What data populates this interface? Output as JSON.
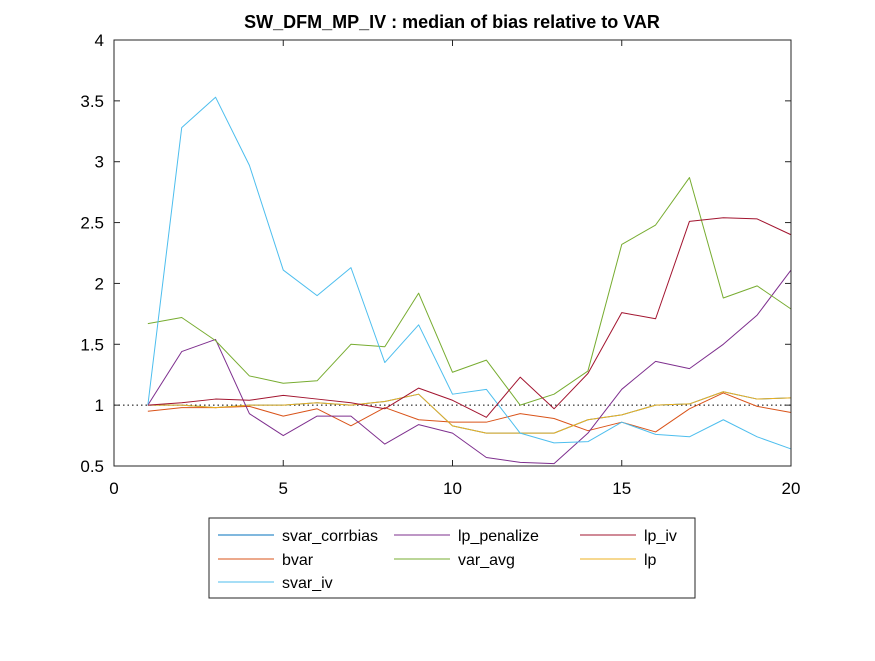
{
  "chart_data": {
    "type": "line",
    "title": "SW_DFM_MP_IV : median of bias relative to VAR",
    "xlabel": "",
    "ylabel": "",
    "xlim": [
      0,
      20
    ],
    "ylim": [
      0.5,
      4
    ],
    "x_ticks": [
      "0",
      "5",
      "10",
      "15",
      "20"
    ],
    "y_ticks": [
      "0.5",
      "1",
      "1.5",
      "2",
      "2.5",
      "3",
      "3.5",
      "4"
    ],
    "grid": false,
    "legend_placement": "bottom-center",
    "legend_columns": 3,
    "reference_line": {
      "y": 1,
      "style": "dotted"
    },
    "x": [
      1,
      2,
      3,
      4,
      5,
      6,
      7,
      8,
      9,
      10,
      11,
      12,
      13,
      14,
      15,
      16,
      17,
      18,
      19,
      20
    ],
    "series": [
      {
        "name": "svar_corrbias",
        "color": "#0072BD",
        "values": [
          1.0,
          1.0,
          0.98,
          1.0,
          1.0,
          1.02,
          1.0,
          1.03,
          1.09,
          0.83,
          0.77,
          0.77,
          0.77,
          0.88,
          0.92,
          1.0,
          1.01,
          1.11,
          1.05,
          1.06
        ]
      },
      {
        "name": "bvar",
        "color": "#D95319",
        "values": [
          0.95,
          0.98,
          0.98,
          0.99,
          0.91,
          0.97,
          0.83,
          0.98,
          0.88,
          0.86,
          0.86,
          0.93,
          0.89,
          0.79,
          0.86,
          0.78,
          0.97,
          1.1,
          0.99,
          0.94
        ]
      },
      {
        "name": "lp",
        "color": "#EDB120",
        "values": [
          1.0,
          1.0,
          0.98,
          1.0,
          1.0,
          1.02,
          1.0,
          1.03,
          1.09,
          0.83,
          0.77,
          0.77,
          0.77,
          0.88,
          0.92,
          1.0,
          1.01,
          1.11,
          1.05,
          1.06
        ]
      },
      {
        "name": "lp_penalize",
        "color": "#7E2F8E",
        "values": [
          1.0,
          1.44,
          1.54,
          0.93,
          0.75,
          0.91,
          0.91,
          0.68,
          0.84,
          0.77,
          0.57,
          0.53,
          0.52,
          0.77,
          1.13,
          1.36,
          1.3,
          1.5,
          1.74,
          2.11
        ]
      },
      {
        "name": "var_avg",
        "color": "#77AC30",
        "values": [
          1.67,
          1.72,
          1.53,
          1.24,
          1.18,
          1.2,
          1.5,
          1.48,
          1.92,
          1.27,
          1.37,
          1.0,
          1.09,
          1.28,
          2.32,
          2.48,
          2.87,
          1.88,
          1.98,
          1.79
        ]
      },
      {
        "name": "svar_iv",
        "color": "#4DBEEE",
        "values": [
          1.0,
          3.28,
          3.53,
          2.97,
          2.11,
          1.9,
          2.13,
          1.35,
          1.66,
          1.09,
          1.13,
          0.77,
          0.69,
          0.7,
          0.86,
          0.76,
          0.74,
          0.88,
          0.74,
          0.64
        ]
      },
      {
        "name": "lp_iv",
        "color": "#A2142F",
        "values": [
          1.0,
          1.02,
          1.05,
          1.04,
          1.08,
          1.05,
          1.02,
          0.97,
          1.14,
          1.04,
          0.9,
          1.23,
          0.97,
          1.26,
          1.76,
          1.71,
          2.51,
          2.54,
          2.53,
          2.4
        ]
      }
    ],
    "legend_order": [
      "svar_corrbias",
      "lp_penalize",
      "lp_iv",
      "bvar",
      "var_avg",
      "lp",
      "svar_iv"
    ]
  }
}
